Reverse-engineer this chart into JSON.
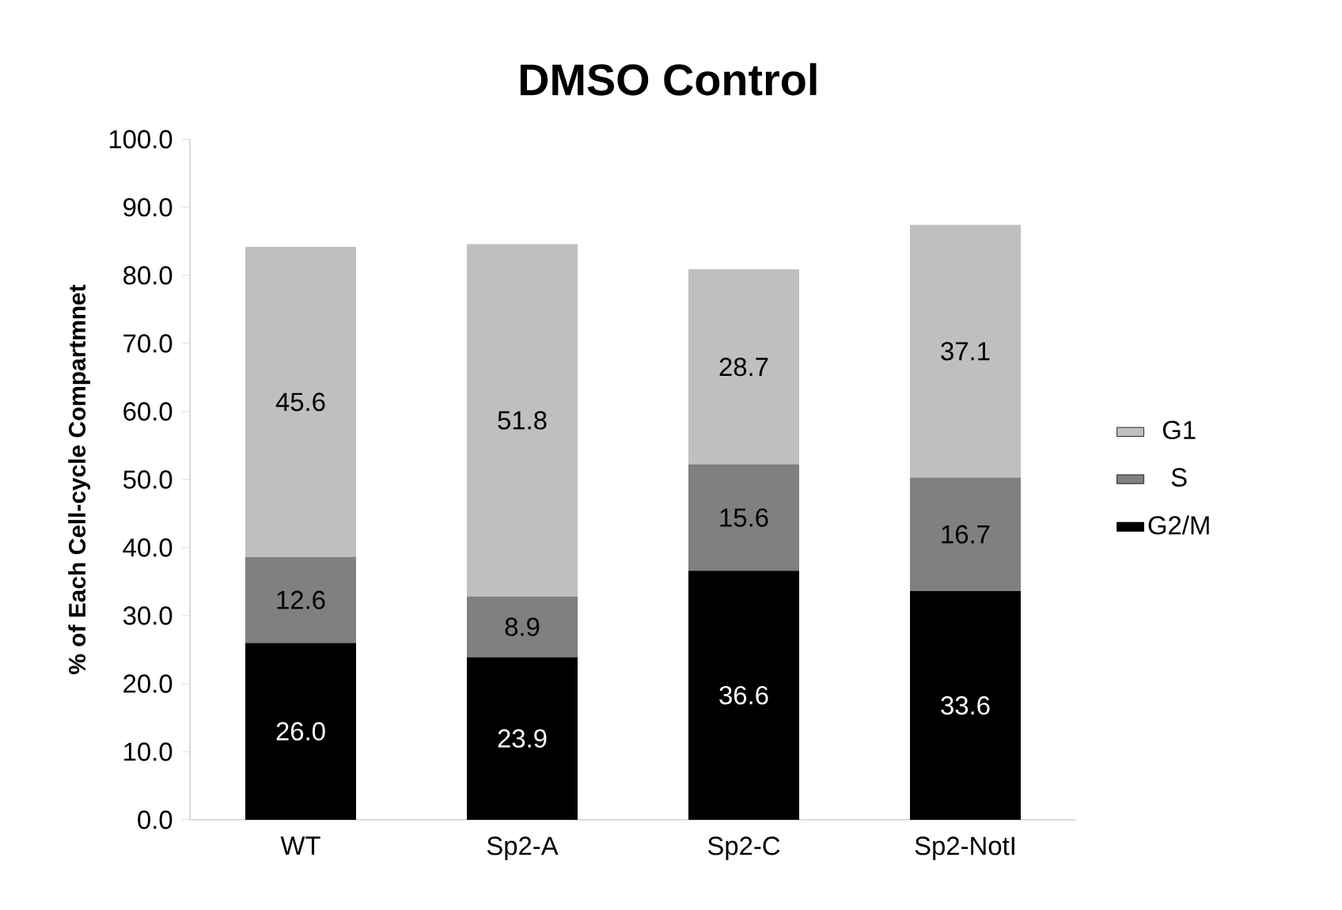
{
  "chart_data": {
    "type": "bar",
    "title": "DMSO Control",
    "ylabel": "% of Each Cell-cycle Compartmnet",
    "categories": [
      "WT",
      "Sp2-A",
      "Sp2-C",
      "Sp2-NotI"
    ],
    "stacked": true,
    "legend": "right",
    "grid": false,
    "ylim": [
      0,
      100
    ],
    "yticks": [
      {
        "value": 0,
        "label": "0.0"
      },
      {
        "value": 10,
        "label": "10.0"
      },
      {
        "value": 20,
        "label": "20.0"
      },
      {
        "value": 30,
        "label": "30.0"
      },
      {
        "value": 40,
        "label": "40.0"
      },
      {
        "value": 50,
        "label": "50.0"
      },
      {
        "value": 60,
        "label": "60.0"
      },
      {
        "value": 70,
        "label": "70.0"
      },
      {
        "value": 80,
        "label": "80.0"
      },
      {
        "value": 90,
        "label": "90.0"
      },
      {
        "value": 100,
        "label": "100.0"
      }
    ],
    "series": [
      {
        "name": "G2/M",
        "color": "#000000",
        "values": [
          26.0,
          23.9,
          36.6,
          33.6
        ],
        "value_labels": [
          "26.0",
          "23.9",
          "36.6",
          "33.6"
        ]
      },
      {
        "name": "S",
        "color": "#808080",
        "values": [
          12.6,
          8.9,
          15.6,
          16.7
        ],
        "value_labels": [
          "12.6",
          "8.9",
          "15.6",
          "16.7"
        ]
      },
      {
        "name": "G1",
        "color": "#bfbfbf",
        "values": [
          45.6,
          51.8,
          28.7,
          37.1
        ],
        "value_labels": [
          "45.6",
          "51.8",
          "28.7",
          "37.1"
        ]
      }
    ]
  }
}
